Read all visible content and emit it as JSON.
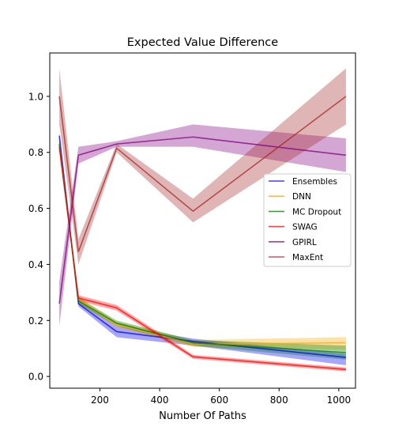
{
  "chart_data": {
    "type": "line",
    "title": "Expected Value Difference",
    "xlabel": "Number Of Paths",
    "ylabel": "",
    "xlim": [
      32,
      1056
    ],
    "ylim": [
      -0.042,
      1.155
    ],
    "xticks": [
      200,
      400,
      600,
      800,
      1000
    ],
    "xtick_labels": [
      "200",
      "400",
      "600",
      "800",
      "1000"
    ],
    "yticks": [
      0.0,
      0.2,
      0.4,
      0.6,
      0.8,
      1.0
    ],
    "ytick_labels": [
      "0.0",
      "0.2",
      "0.4",
      "0.6",
      "0.8",
      "1.0"
    ],
    "grid": false,
    "legend_position": "center-right",
    "x": [
      64,
      128,
      256,
      512,
      1024
    ],
    "series": [
      {
        "name": "Ensembles",
        "color": "#0000ff",
        "values": [
          0.86,
          0.26,
          0.16,
          0.125,
          0.068
        ],
        "lower": [
          0.83,
          0.25,
          0.14,
          0.11,
          0.04
        ],
        "upper": [
          0.87,
          0.27,
          0.18,
          0.135,
          0.08
        ]
      },
      {
        "name": "DNN",
        "color": "#ffa500",
        "values": [
          0.83,
          0.275,
          0.185,
          0.115,
          0.12
        ],
        "lower": [
          0.81,
          0.26,
          0.175,
          0.105,
          0.095
        ],
        "upper": [
          0.85,
          0.285,
          0.195,
          0.13,
          0.14
        ]
      },
      {
        "name": "MC Dropout",
        "color": "#008000",
        "values": [
          0.83,
          0.27,
          0.19,
          0.12,
          0.085
        ],
        "lower": [
          0.81,
          0.26,
          0.18,
          0.11,
          0.06
        ],
        "upper": [
          0.85,
          0.28,
          0.2,
          0.13,
          0.11
        ]
      },
      {
        "name": "SWAG",
        "color": "#ff0000",
        "values": [
          0.82,
          0.28,
          0.245,
          0.07,
          0.025
        ],
        "lower": [
          0.8,
          0.27,
          0.235,
          0.063,
          0.018
        ],
        "upper": [
          0.84,
          0.29,
          0.255,
          0.077,
          0.032
        ]
      },
      {
        "name": "GPIRL",
        "color": "#800080",
        "values": [
          0.26,
          0.79,
          0.83,
          0.855,
          0.79
        ],
        "lower": [
          0.18,
          0.76,
          0.82,
          0.82,
          0.73
        ],
        "upper": [
          0.34,
          0.82,
          0.84,
          0.9,
          0.85
        ]
      },
      {
        "name": "MaxEnt",
        "color": "#a52a2a",
        "values": [
          1.0,
          0.445,
          0.815,
          0.59,
          1.0
        ],
        "lower": [
          0.9,
          0.4,
          0.8,
          0.55,
          0.9
        ],
        "upper": [
          1.1,
          0.49,
          0.83,
          0.635,
          1.1
        ]
      }
    ]
  }
}
